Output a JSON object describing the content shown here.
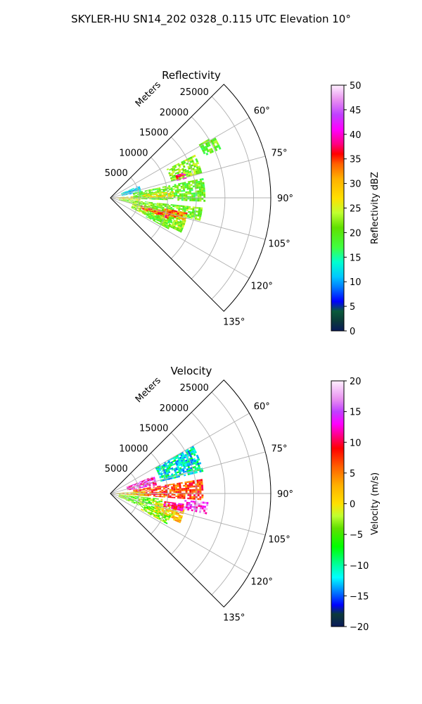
{
  "figure": {
    "suptitle": "SKYLER-HU  SN14_202  0328_0.115 UTC Elevation 10°"
  },
  "chart_data": [
    {
      "type": "heatmap",
      "projection": "polar-sector",
      "title": "Reflectivity",
      "range_label": "Meters",
      "range_ticks": [
        5000,
        10000,
        15000,
        20000,
        25000
      ],
      "range_tick_labels": [
        "5000",
        "10000",
        "15000",
        "20000",
        "25000"
      ],
      "range_max": 28000,
      "azimuth_range": [
        45,
        135
      ],
      "azimuth_ticks": [
        60,
        75,
        90,
        105,
        120,
        135
      ],
      "azimuth_tick_labels": [
        "60°",
        "75°",
        "90°",
        "105°",
        "120°",
        "135°"
      ],
      "grid": true,
      "colorbar": {
        "label": "Reflectivity dBZ",
        "vmin": 0,
        "vmax": 50,
        "ticks": [
          0,
          5,
          10,
          15,
          20,
          25,
          30,
          35,
          40,
          45,
          50
        ],
        "tick_labels": [
          "0",
          "5",
          "10",
          "15",
          "20",
          "25",
          "30",
          "35",
          "40",
          "45",
          "50"
        ],
        "stops": [
          [
            0,
            "#0a1a5a"
          ],
          [
            2,
            "#0b3a3a"
          ],
          [
            4,
            "#0a5a3a"
          ],
          [
            6,
            "#0000ff"
          ],
          [
            9,
            "#0080ff"
          ],
          [
            11,
            "#00c8ff"
          ],
          [
            14,
            "#00ffd0"
          ],
          [
            17,
            "#40ff40"
          ],
          [
            21,
            "#60e000"
          ],
          [
            24,
            "#c0ff30"
          ],
          [
            27,
            "#ffe000"
          ],
          [
            31,
            "#ffb000"
          ],
          [
            34,
            "#ff6000"
          ],
          [
            36,
            "#ff0000"
          ],
          [
            38,
            "#ff0080"
          ],
          [
            41,
            "#ff00ff"
          ],
          [
            44,
            "#c040ff"
          ],
          [
            47,
            "#e890f0"
          ],
          [
            50,
            "#fff0ff"
          ]
        ]
      },
      "echo_regions": [
        {
          "az": [
            67,
            80
          ],
          "r": [
            2000,
            5500
          ],
          "value": 12
        },
        {
          "az": [
            86,
            95
          ],
          "r": [
            0,
            5000
          ],
          "value": 27
        },
        {
          "az": [
            78,
            92
          ],
          "r": [
            4000,
            16500
          ],
          "value": 20
        },
        {
          "az": [
            63,
            74
          ],
          "r": [
            11000,
            16500
          ],
          "value": 22
        },
        {
          "az": [
            59,
            66
          ],
          "r": [
            18000,
            21000
          ],
          "value": 20
        },
        {
          "az": [
            71,
            75
          ],
          "r": [
            12000,
            13500
          ],
          "value": 38
        },
        {
          "az": [
            84,
            90
          ],
          "r": [
            5500,
            11000
          ],
          "value": 26
        },
        {
          "az": [
            96,
            104
          ],
          "r": [
            1500,
            16000
          ],
          "value": 21
        },
        {
          "az": [
            103,
            116
          ],
          "r": [
            4000,
            13500
          ],
          "value": 22
        },
        {
          "az": [
            104,
            109
          ],
          "r": [
            5500,
            10500
          ],
          "value": 35
        },
        {
          "az": [
            101,
            106
          ],
          "r": [
            9500,
            13500
          ],
          "value": 33
        },
        {
          "az": [
            110,
            118
          ],
          "r": [
            7000,
            11500
          ],
          "value": 20
        }
      ]
    },
    {
      "type": "heatmap",
      "projection": "polar-sector",
      "title": "Velocity",
      "range_label": "Meters",
      "range_ticks": [
        5000,
        10000,
        15000,
        20000,
        25000
      ],
      "range_tick_labels": [
        "5000",
        "10000",
        "15000",
        "20000",
        "25000"
      ],
      "range_max": 28000,
      "azimuth_range": [
        45,
        135
      ],
      "azimuth_ticks": [
        60,
        75,
        90,
        105,
        120,
        135
      ],
      "azimuth_tick_labels": [
        "60°",
        "75°",
        "90°",
        "105°",
        "120°",
        "135°"
      ],
      "grid": true,
      "colorbar": {
        "label": "Velocity (m/s)",
        "vmin": -20,
        "vmax": 20,
        "ticks": [
          -20,
          -15,
          -10,
          -5,
          0,
          5,
          10,
          15,
          20
        ],
        "tick_labels": [
          "−20",
          "−15",
          "−10",
          "−5",
          "0",
          "5",
          "10",
          "15",
          "20"
        ],
        "stops": [
          [
            -20,
            "#0a1a5a"
          ],
          [
            -18,
            "#0b3a3a"
          ],
          [
            -16.5,
            "#0000ff"
          ],
          [
            -14,
            "#0090ff"
          ],
          [
            -12,
            "#00ffff"
          ],
          [
            -10,
            "#00ffa0"
          ],
          [
            -7,
            "#00ff00"
          ],
          [
            -4,
            "#60e000"
          ],
          [
            -2,
            "#c0ff30"
          ],
          [
            0,
            "#ffe000"
          ],
          [
            3,
            "#ffb000"
          ],
          [
            6,
            "#ff6000"
          ],
          [
            9,
            "#ff0000"
          ],
          [
            11,
            "#ff0080"
          ],
          [
            13,
            "#ff00ff"
          ],
          [
            15,
            "#c040ff"
          ],
          [
            17,
            "#e890f0"
          ],
          [
            20,
            "#fff0ff"
          ]
        ]
      },
      "echo_regions": [
        {
          "az": [
            68,
            80
          ],
          "r": [
            3000,
            8000
          ],
          "value": 13
        },
        {
          "az": [
            60,
            76
          ],
          "r": [
            9000,
            16500
          ],
          "value": -11
        },
        {
          "az": [
            81,
            94
          ],
          "r": [
            4000,
            16000
          ],
          "value": 7
        },
        {
          "az": [
            86,
            94
          ],
          "r": [
            0,
            6000
          ],
          "value": 1
        },
        {
          "az": [
            96,
            112
          ],
          "r": [
            1500,
            9000
          ],
          "value": -4
        },
        {
          "az": [
            101,
            112
          ],
          "r": [
            8000,
            13000
          ],
          "value": 1
        },
        {
          "az": [
            98,
            104
          ],
          "r": [
            9500,
            13000
          ],
          "value": 10
        },
        {
          "az": [
            95,
            102
          ],
          "r": [
            13000,
            17000
          ],
          "value": 15
        },
        {
          "az": [
            110,
            118
          ],
          "r": [
            6000,
            11000
          ],
          "value": -3
        }
      ]
    }
  ]
}
